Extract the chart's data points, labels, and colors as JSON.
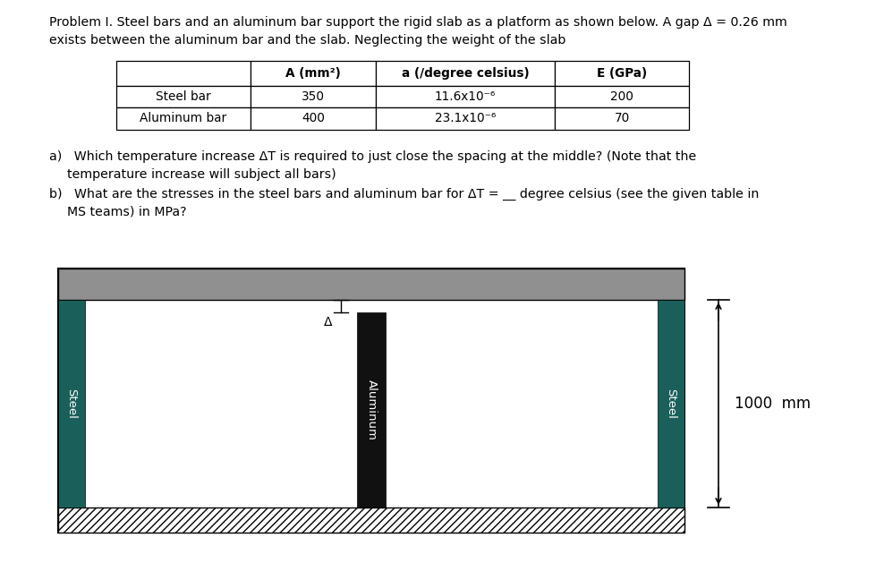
{
  "title_text": "Problem I. Steel bars and an aluminum bar support the rigid slab as a platform as shown below. A gap Δ = 0.26 mm\nexists between the aluminum bar and the slab. Neglecting the weight of the slab",
  "table_headers": [
    "",
    "A (mm²)",
    "a (/degree celsius)",
    "E (GPa)"
  ],
  "table_row1": [
    "Steel bar",
    "350",
    "11.6x10⁻⁶",
    "200"
  ],
  "table_row2": [
    "Aluminum bar",
    "400",
    "23.1x10⁻⁶",
    "70"
  ],
  "bg_color": "#ffffff",
  "slab_color": "#909090",
  "steel_color": "#1a5f5a",
  "aluminum_color": "#111111",
  "dim_text": "1000  mm",
  "label_steel": "Steel",
  "label_aluminum": "Aluminum"
}
